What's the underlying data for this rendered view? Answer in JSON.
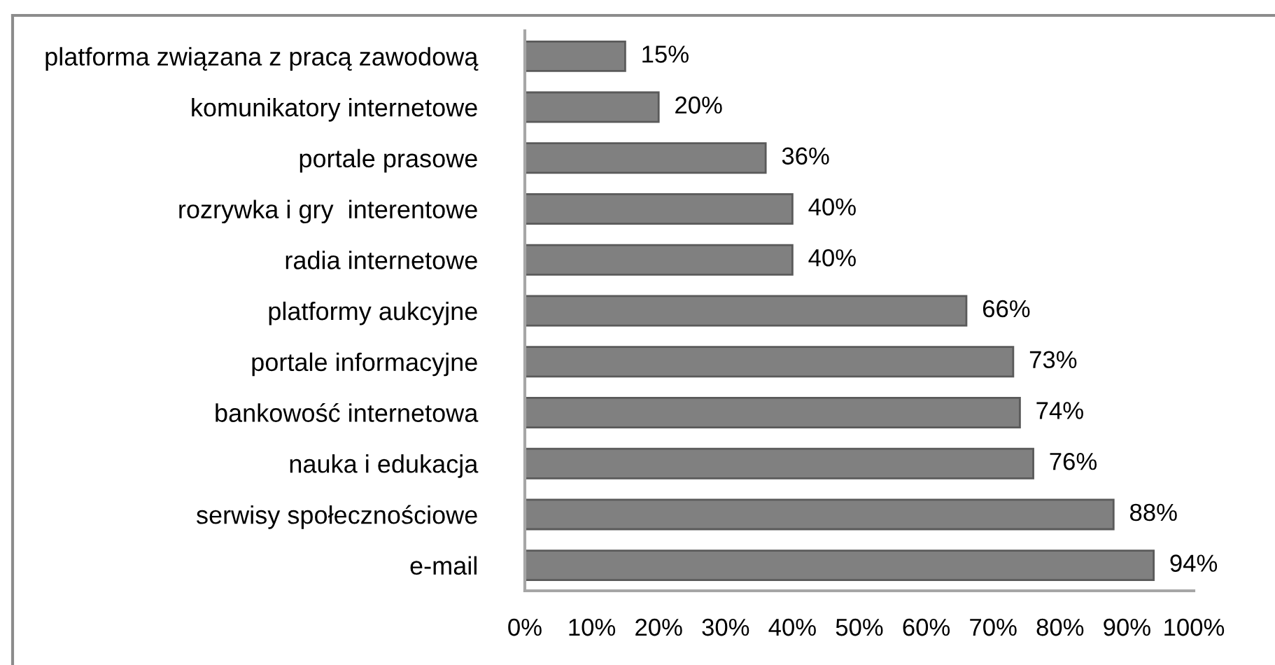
{
  "chart_data": {
    "type": "bar",
    "orientation": "horizontal",
    "categories": [
      "platforma związana z pracą zawodową",
      "komunikatory internetowe",
      "portale prasowe",
      "rozrywka i gry  interentowe",
      "radia internetowe",
      "platformy aukcyjne",
      "portale informacyjne",
      "bankowość internetowa",
      "nauka i edukacja",
      "serwisy społecznościowe",
      "e-mail"
    ],
    "values": [
      15,
      20,
      36,
      40,
      40,
      66,
      73,
      74,
      76,
      88,
      94
    ],
    "value_labels": [
      "15%",
      "20%",
      "36%",
      "40%",
      "40%",
      "66%",
      "73%",
      "74%",
      "76%",
      "88%",
      "94%"
    ],
    "color": "#808080",
    "xlim": [
      0,
      100
    ],
    "xticks": [
      {
        "value": 0,
        "label": "0%"
      },
      {
        "value": 10,
        "label": "10%"
      },
      {
        "value": 20,
        "label": "20%"
      },
      {
        "value": 30,
        "label": "30%"
      },
      {
        "value": 40,
        "label": "40%"
      },
      {
        "value": 50,
        "label": "50%"
      },
      {
        "value": 60,
        "label": "60%"
      },
      {
        "value": 70,
        "label": "70%"
      },
      {
        "value": 80,
        "label": "80%"
      },
      {
        "value": 90,
        "label": "90%"
      },
      {
        "value": 100,
        "label": "100%"
      }
    ],
    "grid": false,
    "legend": false
  }
}
